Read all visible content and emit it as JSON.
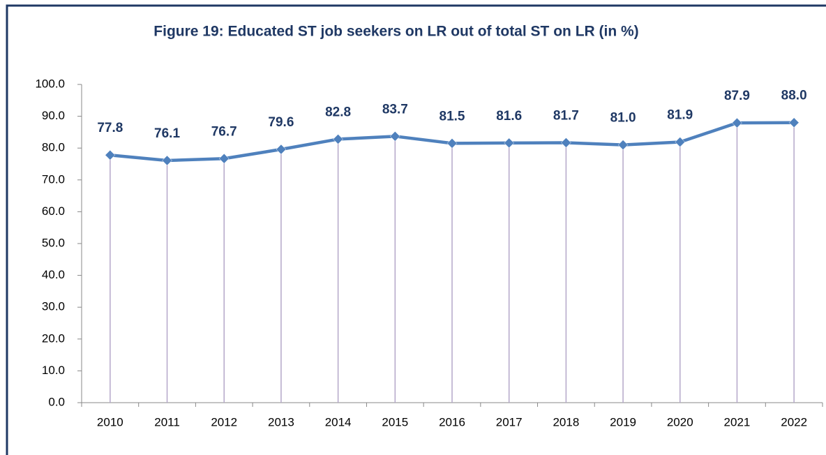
{
  "chart_data": {
    "type": "line",
    "title": "Figure 19: Educated ST job seekers on LR out of total ST on LR (in %)",
    "categories": [
      "2010",
      "2011",
      "2012",
      "2013",
      "2014",
      "2015",
      "2016",
      "2017",
      "2018",
      "2019",
      "2020",
      "2021",
      "2022"
    ],
    "series": [
      {
        "name": "Educated ST job seekers on LR",
        "color": "#4f81bd",
        "values": [
          77.8,
          76.1,
          76.7,
          79.6,
          82.8,
          83.7,
          81.5,
          81.6,
          81.7,
          81.0,
          81.9,
          87.9,
          88.0
        ],
        "value_labels": [
          "77.8",
          "76.1",
          "76.7",
          "79.6",
          "82.8",
          "83.7",
          "81.5",
          "81.6",
          "81.7",
          "81.0",
          "81.9",
          "87.9",
          "88.0"
        ]
      }
    ],
    "ylim": [
      0,
      100
    ],
    "yticks": [
      {
        "value": 0,
        "label": "0.0"
      },
      {
        "value": 10,
        "label": "10.0"
      },
      {
        "value": 20,
        "label": "20.0"
      },
      {
        "value": 30,
        "label": "30.0"
      },
      {
        "value": 40,
        "label": "40.0"
      },
      {
        "value": 50,
        "label": "50.0"
      },
      {
        "value": 60,
        "label": "60.0"
      },
      {
        "value": 70,
        "label": "70.0"
      },
      {
        "value": 80,
        "label": "80.0"
      },
      {
        "value": 90,
        "label": "90.0"
      },
      {
        "value": 100,
        "label": "100.0"
      }
    ],
    "drop_lines": true,
    "drop_line_color": "#b4a7c9"
  }
}
